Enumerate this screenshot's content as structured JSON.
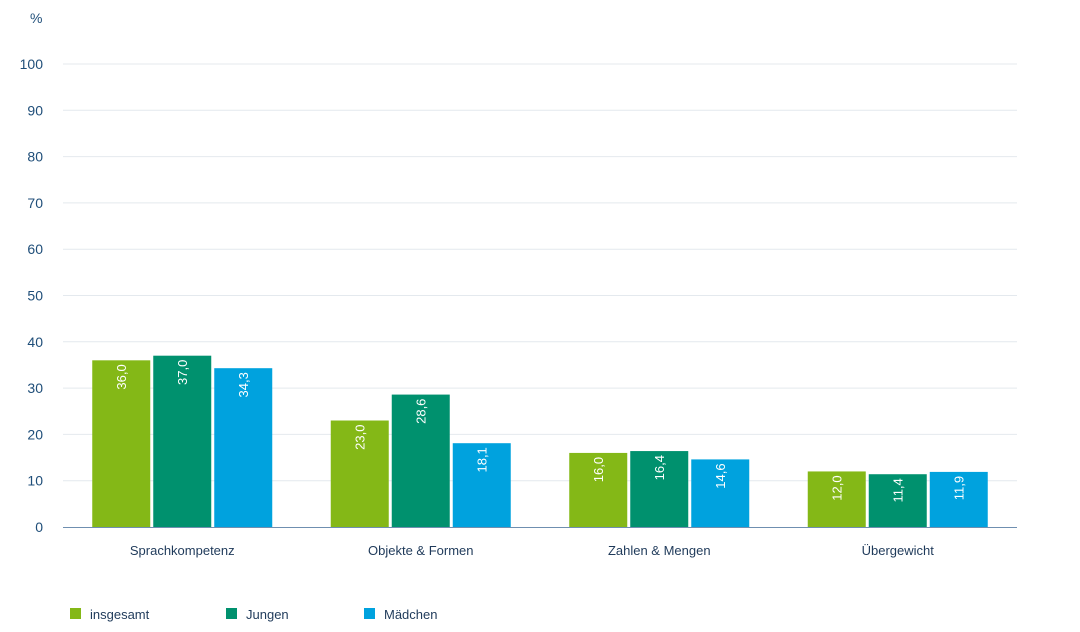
{
  "chart_data": {
    "type": "bar",
    "ylabel": "%",
    "ylim": [
      0,
      100
    ],
    "yticks": [
      0,
      10,
      20,
      30,
      40,
      50,
      60,
      70,
      80,
      90,
      100
    ],
    "categories": [
      "Sprachkompetenz",
      "Objekte & Formen",
      "Zahlen & Mengen",
      "Übergewicht"
    ],
    "series": [
      {
        "name": "insgesamt",
        "color": "#84b817",
        "values": [
          36.0,
          23.0,
          16.0,
          12.0
        ],
        "labels": [
          "36,0",
          "23,0",
          "16,0",
          "12,0"
        ]
      },
      {
        "name": "Jungen",
        "color": "#00916e",
        "values": [
          37.0,
          28.6,
          16.4,
          11.4
        ],
        "labels": [
          "37,0",
          "28,6",
          "16,4",
          "11,4"
        ]
      },
      {
        "name": "Mädchen",
        "color": "#00a2de",
        "values": [
          34.3,
          18.1,
          14.6,
          11.9
        ],
        "labels": [
          "34,3",
          "18,1",
          "14,6",
          "11,9"
        ]
      }
    ],
    "grid": true,
    "legend_position": "bottom-left"
  }
}
